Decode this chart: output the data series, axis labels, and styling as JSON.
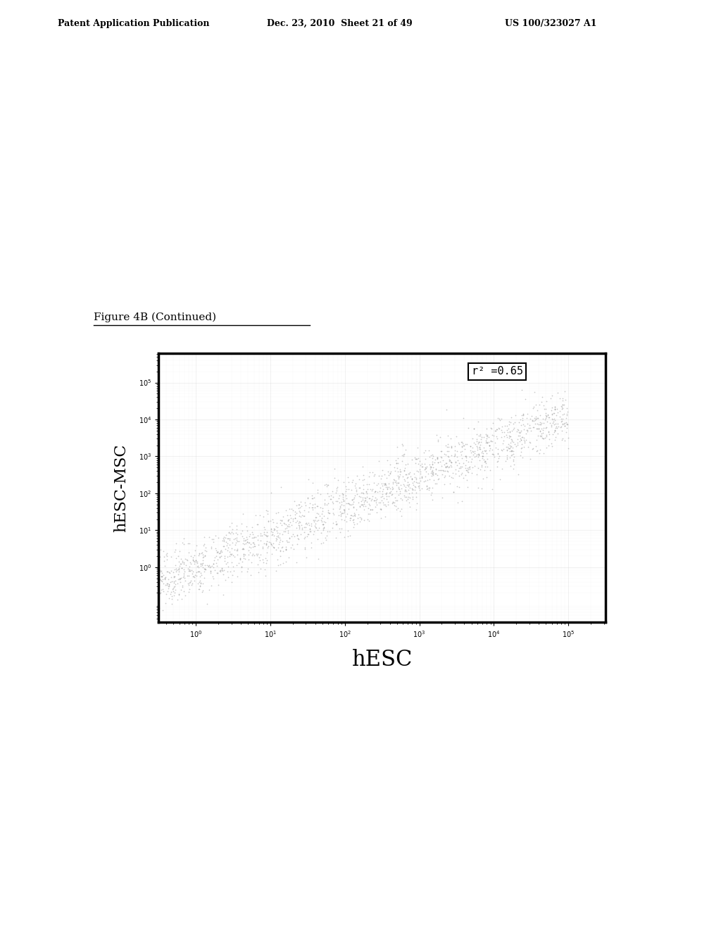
{
  "page_header_left": "Patent Application Publication",
  "page_header_center": "Dec. 23, 2010  Sheet 21 of 49",
  "page_header_right": "US 100/323027 A1",
  "figure_label": "Figure 4B (Continued)",
  "xlabel": "hESC",
  "ylabel": "hESC-MSC",
  "r_squared": "r² =0.65",
  "scatter_color": "#888888",
  "background_color": "#ffffff",
  "plot_bg_color": "#ffffff",
  "n_points": 2000,
  "seed": 42
}
